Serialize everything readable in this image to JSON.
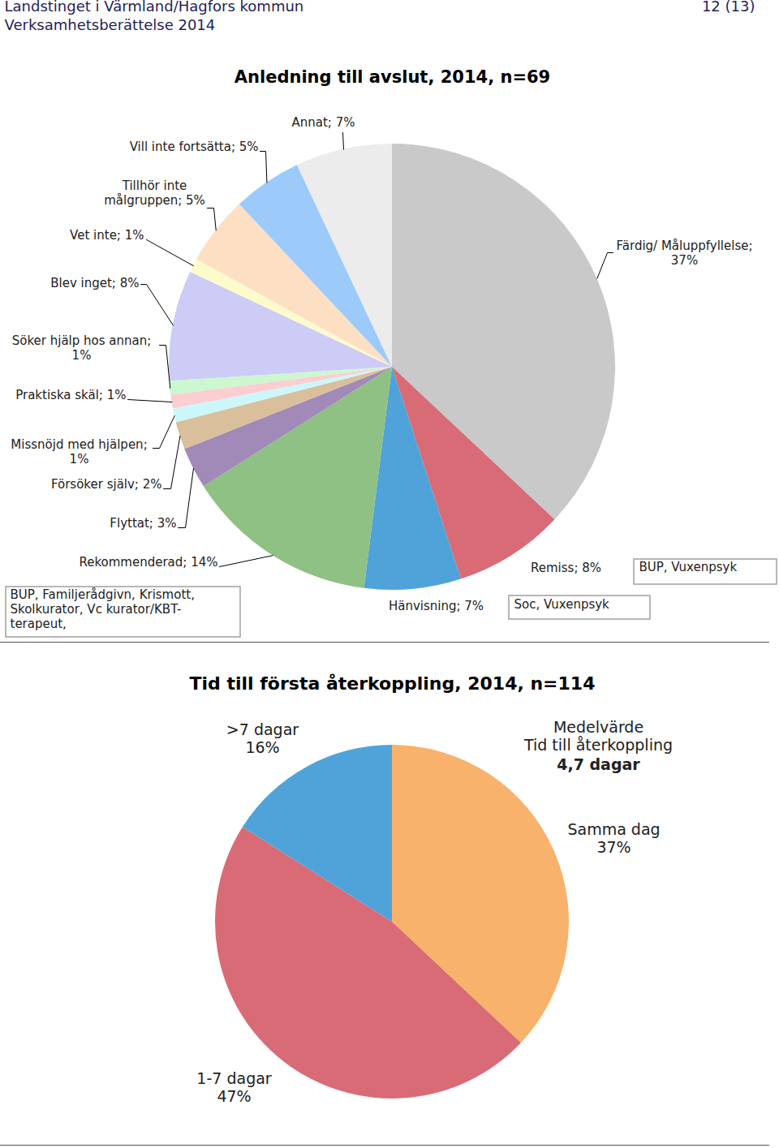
{
  "header": {
    "left": [
      "Landstinget i Värmland/Hagfors kommun",
      "Verksamhetsberättelse 2014"
    ],
    "right": "12 (13)"
  },
  "chart_data": [
    {
      "type": "pie",
      "title": "Anledning till avslut, 2014, n=69",
      "categories": [
        "Färdig/ Måluppfyllelse",
        "Remiss",
        "Hänvisning",
        "Rekommenderad",
        "Flyttat",
        "Försöker själv",
        "Missnöjd med hjälpen",
        "Praktiska skäl",
        "Söker hjälp hos annan",
        "Blev inget",
        "Vet inte",
        "Tillhör inte målgruppen",
        "Vill inte fortsätta",
        "Annat"
      ],
      "values": [
        37,
        8,
        7,
        14,
        3,
        2,
        1,
        1,
        1,
        8,
        1,
        5,
        5,
        7
      ],
      "value_labels": [
        "Färdig/ Måluppfyllelse;\n37%",
        "Remiss; 8%",
        "Hänvisning; 7%",
        "Rekommenderad; 14%",
        "Flyttat; 3%",
        "Försöker själv; 2%",
        "Missnöjd med hjälpen;\n1%",
        "Praktiska skäl; 1%",
        "Söker hjälp hos annan;\n1%",
        "Blev inget; 8%",
        "Vet inte; 1%",
        "Tillhör inte\nmålgruppen; 5%",
        "Vill inte fortsätta; 5%",
        "Annat; 7%"
      ],
      "colors": [
        "#c9c9c9",
        "#d96b76",
        "#4fa3d9",
        "#8fc084",
        "#a189b8",
        "#d9bf9b",
        "#ccf7fa",
        "#fbcfd2",
        "#ccf7cf",
        "#ccccf7",
        "#fdfbcc",
        "#fde0c4",
        "#9ccbfb",
        "#ececec"
      ],
      "data_labels": true,
      "annotations": [
        {
          "text": "BUP, Vuxenpsyk"
        },
        {
          "text": "Soc, Vuxenpsyk"
        },
        {
          "text": "BUP, Familjerådgivn, Krismott,\nSkolkurator, Vc kurator/KBT-\nterapeut,"
        }
      ]
    },
    {
      "type": "pie",
      "title": "Tid till första återkoppling, 2014, n=114",
      "categories": [
        "Samma dag",
        "1-7 dagar",
        ">7 dagar"
      ],
      "values": [
        37,
        47,
        16
      ],
      "value_labels": [
        "Samma dag\n37%",
        "1-7 dagar\n47%",
        ">7 dagar\n16%"
      ],
      "colors": [
        "#f8b26c",
        "#d96b76",
        "#4fa3d9"
      ],
      "data_labels": true,
      "annotations": [
        {
          "text": "Medelvärde\nTid till återkoppling"
        },
        {
          "text": "4,7 dagar"
        }
      ]
    }
  ]
}
